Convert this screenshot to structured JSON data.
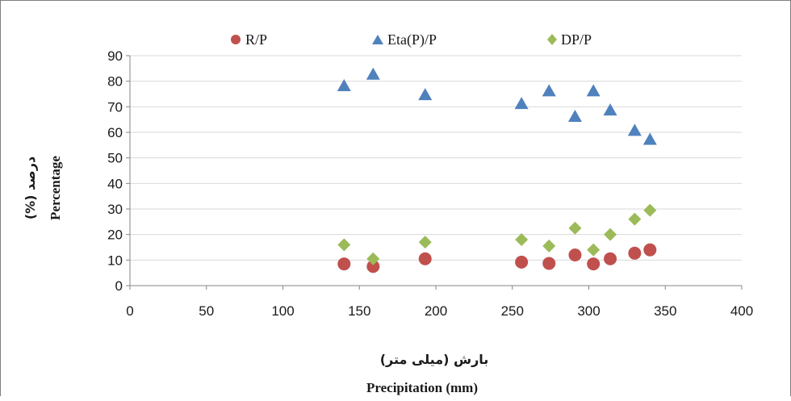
{
  "chart_data": {
    "type": "scatter",
    "title": "",
    "xlabel": "Precipitation (mm)",
    "xlabel_fa": "بارش (میلی متر)",
    "ylabel": "Percentage",
    "ylabel_fa": "درصد (%)",
    "xlim": [
      0,
      400
    ],
    "ylim": [
      0,
      90
    ],
    "x_ticks": [
      0,
      50,
      100,
      150,
      200,
      250,
      300,
      350,
      400
    ],
    "y_ticks": [
      0,
      10,
      20,
      30,
      40,
      50,
      60,
      70,
      80,
      90
    ],
    "grid": "horizontal",
    "legend_position": "top",
    "series": [
      {
        "name": "R/P",
        "marker": "circle",
        "color": "#c0504d",
        "x": [
          140,
          159,
          193,
          256,
          274,
          291,
          303,
          314,
          330,
          340
        ],
        "y": [
          8.5,
          7.5,
          10.5,
          9.2,
          8.7,
          12.0,
          8.5,
          10.5,
          12.7,
          14.0
        ]
      },
      {
        "name": "Eta(P)/P",
        "marker": "triangle",
        "color": "#4f81bd",
        "x": [
          140,
          159,
          193,
          256,
          274,
          291,
          303,
          314,
          330,
          340
        ],
        "y": [
          78,
          82.5,
          74.5,
          71,
          76,
          66,
          76,
          68.5,
          60.5,
          57
        ]
      },
      {
        "name": "DP/P",
        "marker": "diamond",
        "color": "#9bbb59",
        "x": [
          140,
          159,
          193,
          256,
          274,
          291,
          303,
          314,
          330,
          340
        ],
        "y": [
          16,
          10.5,
          17,
          18,
          15.5,
          22.5,
          14,
          20,
          26,
          29.5
        ]
      }
    ]
  }
}
